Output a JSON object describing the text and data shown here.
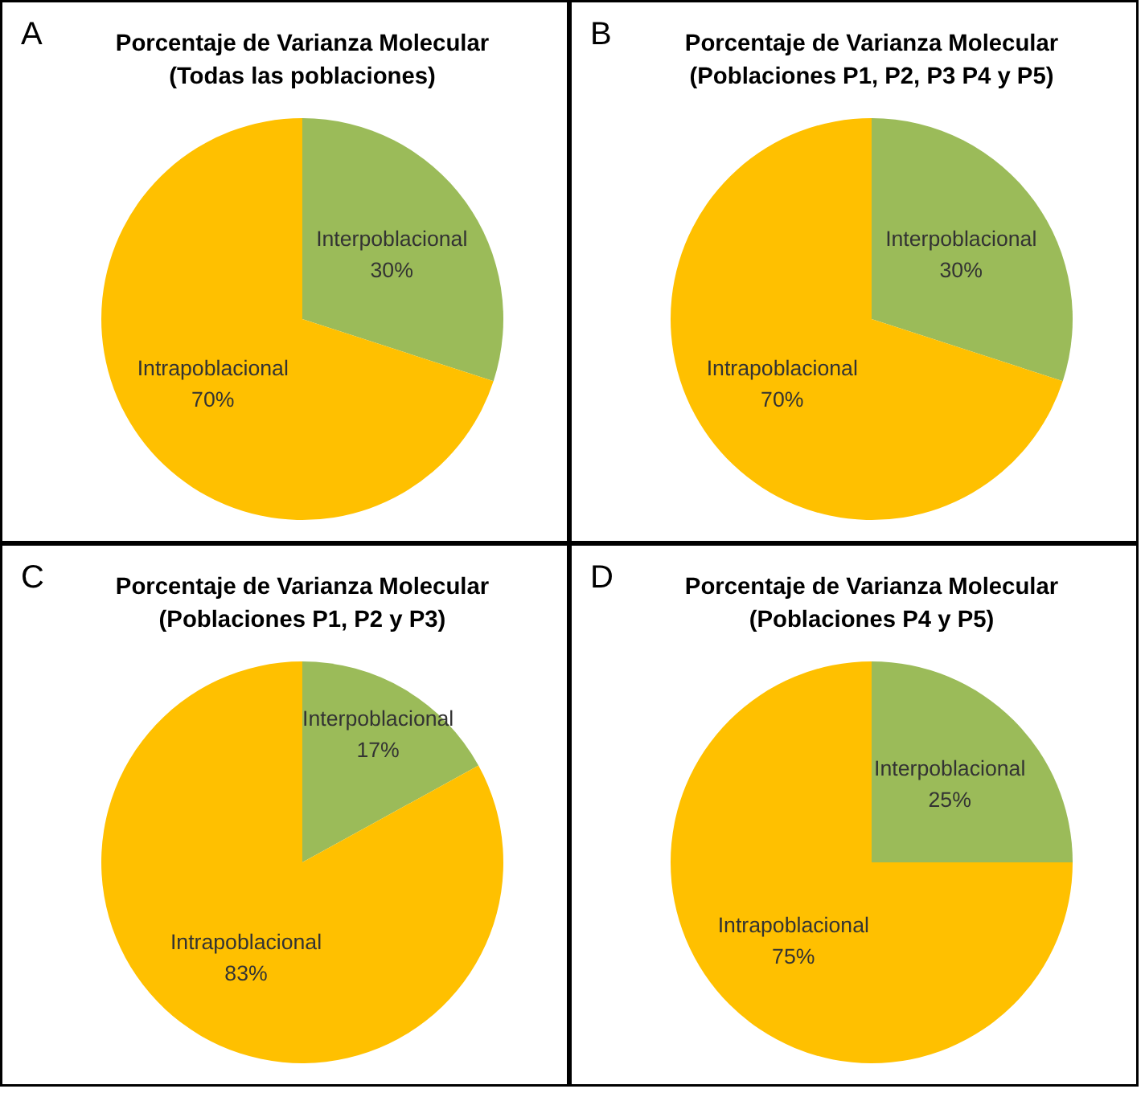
{
  "chart_data": [
    {
      "type": "pie",
      "title": "Porcentaje de Varianza Molecular\n(Todas las poblaciones)",
      "annotations": [
        "A"
      ],
      "categories": [
        "Interpoblacional",
        "Intrapoblacional"
      ],
      "values": [
        30,
        70
      ],
      "value_labels": [
        "30%",
        "70%"
      ],
      "colors": [
        "#9bbb59",
        "#ffc000"
      ]
    },
    {
      "type": "pie",
      "title": "Porcentaje de Varianza Molecular\n(Poblaciones P1, P2, P3 P4 y P5)",
      "annotations": [
        "B"
      ],
      "categories": [
        "Interpoblacional",
        "Intrapoblacional"
      ],
      "values": [
        30,
        70
      ],
      "value_labels": [
        "30%",
        "70%"
      ],
      "colors": [
        "#9bbb59",
        "#ffc000"
      ]
    },
    {
      "type": "pie",
      "title": "Porcentaje de Varianza Molecular\n(Poblaciones P1, P2 y P3)",
      "annotations": [
        "C"
      ],
      "categories": [
        "Interpoblacional",
        "Intrapoblacional"
      ],
      "values": [
        17,
        83
      ],
      "value_labels": [
        "17%",
        "83%"
      ],
      "colors": [
        "#9bbb59",
        "#ffc000"
      ]
    },
    {
      "type": "pie",
      "title": "Porcentaje de Varianza Molecular\n(Poblaciones P4 y P5)",
      "annotations": [
        "D"
      ],
      "categories": [
        "Interpoblacional",
        "Intrapoblacional"
      ],
      "values": [
        25,
        75
      ],
      "value_labels": [
        "25%",
        "75%"
      ],
      "colors": [
        "#9bbb59",
        "#ffc000"
      ]
    }
  ]
}
